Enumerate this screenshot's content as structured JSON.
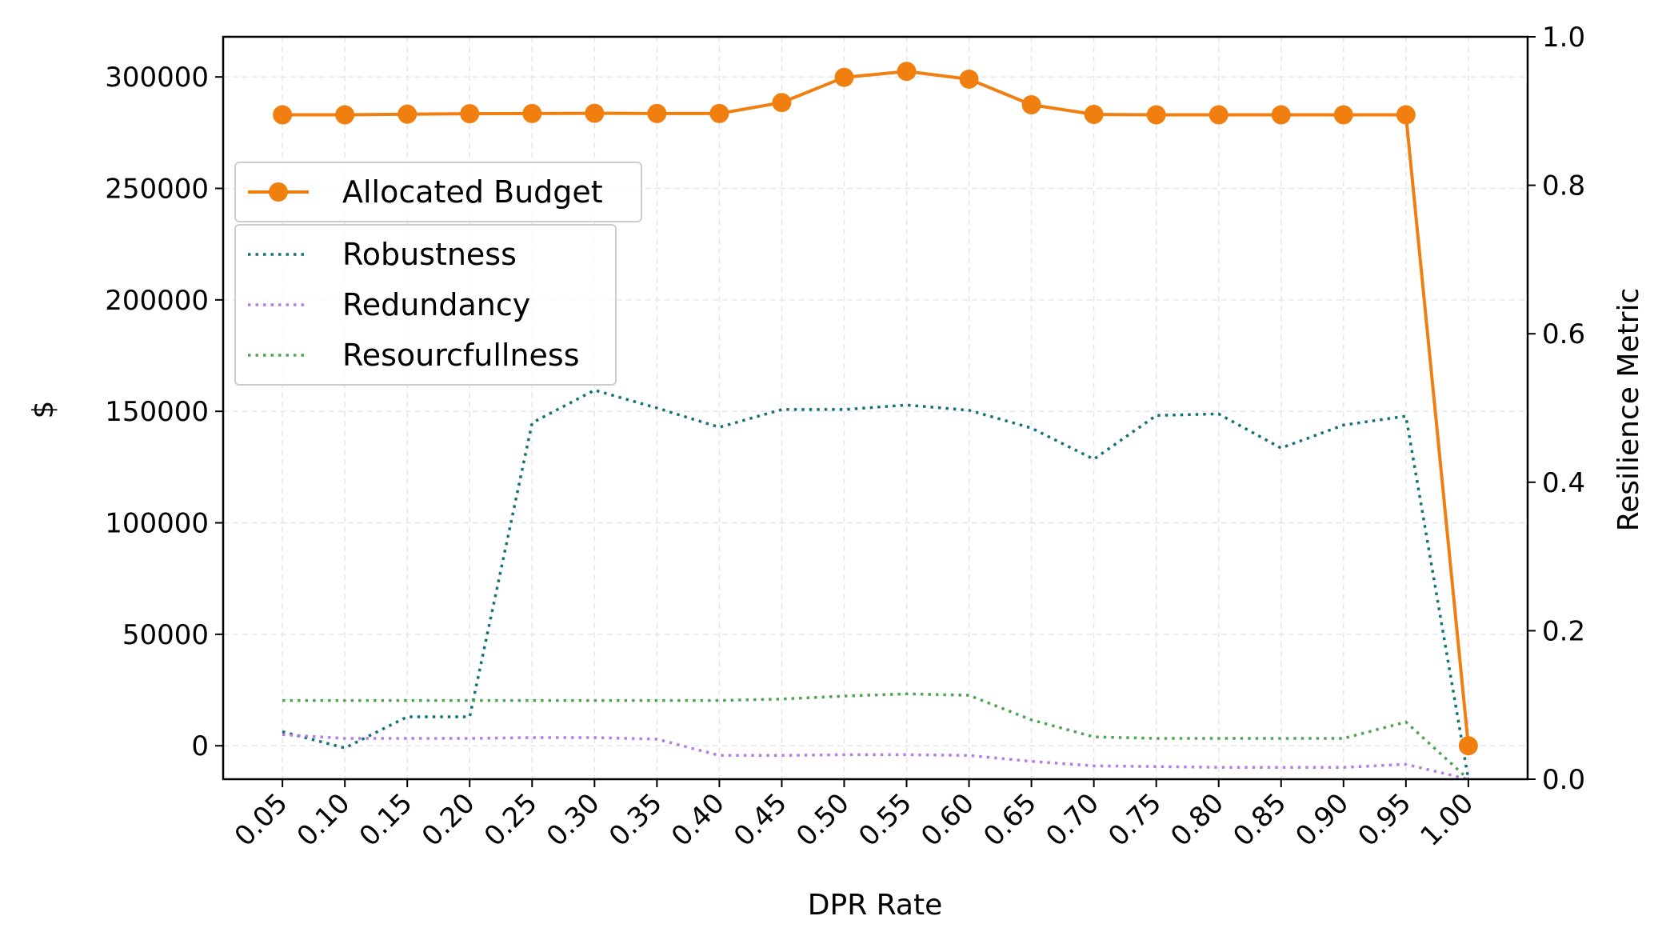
{
  "chart_data": {
    "type": "line",
    "title": "",
    "xlabel": "DPR Rate",
    "ylabel_left": "$",
    "ylabel_right": "Resilience Metric",
    "x": [
      0.05,
      0.1,
      0.15,
      0.2,
      0.25,
      0.3,
      0.35,
      0.4,
      0.45,
      0.5,
      0.55,
      0.6,
      0.65,
      0.7,
      0.75,
      0.8,
      0.85,
      0.9,
      0.95,
      1.0
    ],
    "x_tick_labels": [
      "0.05",
      "0.10",
      "0.15",
      "0.20",
      "0.25",
      "0.30",
      "0.35",
      "0.40",
      "0.45",
      "0.50",
      "0.55",
      "0.60",
      "0.65",
      "0.70",
      "0.75",
      "0.80",
      "0.85",
      "0.90",
      "0.95",
      "1.00"
    ],
    "xlim": [
      0.0025,
      1.0475
    ],
    "ylim_left": [
      -15000,
      318000
    ],
    "ylim_right": [
      0.0,
      1.0
    ],
    "left_ticks": [
      0,
      50000,
      100000,
      150000,
      200000,
      250000,
      300000
    ],
    "left_tick_labels": [
      "0",
      "50000",
      "100000",
      "150000",
      "200000",
      "250000",
      "300000"
    ],
    "right_ticks": [
      0.0,
      0.2,
      0.4,
      0.6,
      0.8,
      1.0
    ],
    "right_tick_labels": [
      "0.0",
      "0.2",
      "0.4",
      "0.6",
      "0.8",
      "1.0"
    ],
    "grid": true,
    "series": [
      {
        "name": "Allocated Budget",
        "axis": "left",
        "style": "solid",
        "marker": "circle",
        "color": "#f07f0f",
        "values": [
          283000,
          283000,
          283300,
          283500,
          283600,
          283700,
          283600,
          283600,
          288500,
          299800,
          302500,
          299000,
          287500,
          283200,
          283000,
          283000,
          283000,
          283000,
          283000,
          0
        ]
      },
      {
        "name": "Robustness",
        "axis": "right",
        "style": "dotted",
        "color": "#137178",
        "values": [
          0.064,
          0.042,
          0.084,
          0.084,
          0.48,
          0.524,
          0.5,
          0.474,
          0.498,
          0.498,
          0.504,
          0.497,
          0.473,
          0.431,
          0.49,
          0.492,
          0.446,
          0.477,
          0.489,
          0.0
        ]
      },
      {
        "name": "Redundancy",
        "axis": "right",
        "style": "dotted",
        "color": "#b57ee6",
        "values": [
          0.06,
          0.055,
          0.055,
          0.055,
          0.056,
          0.056,
          0.054,
          0.032,
          0.032,
          0.033,
          0.033,
          0.032,
          0.024,
          0.018,
          0.017,
          0.016,
          0.016,
          0.016,
          0.02,
          0.0
        ]
      },
      {
        "name": "Resourcfullness",
        "axis": "right",
        "style": "dotted",
        "color": "#4fa451",
        "values": [
          0.106,
          0.106,
          0.106,
          0.106,
          0.106,
          0.106,
          0.106,
          0.106,
          0.108,
          0.112,
          0.115,
          0.113,
          0.08,
          0.057,
          0.055,
          0.055,
          0.055,
          0.055,
          0.077,
          0.0
        ]
      }
    ],
    "legend": {
      "placement": "upper-left",
      "groups": [
        [
          "Allocated Budget"
        ],
        [
          "Robustness",
          "Redundancy",
          "Resourcfullness"
        ]
      ]
    }
  }
}
